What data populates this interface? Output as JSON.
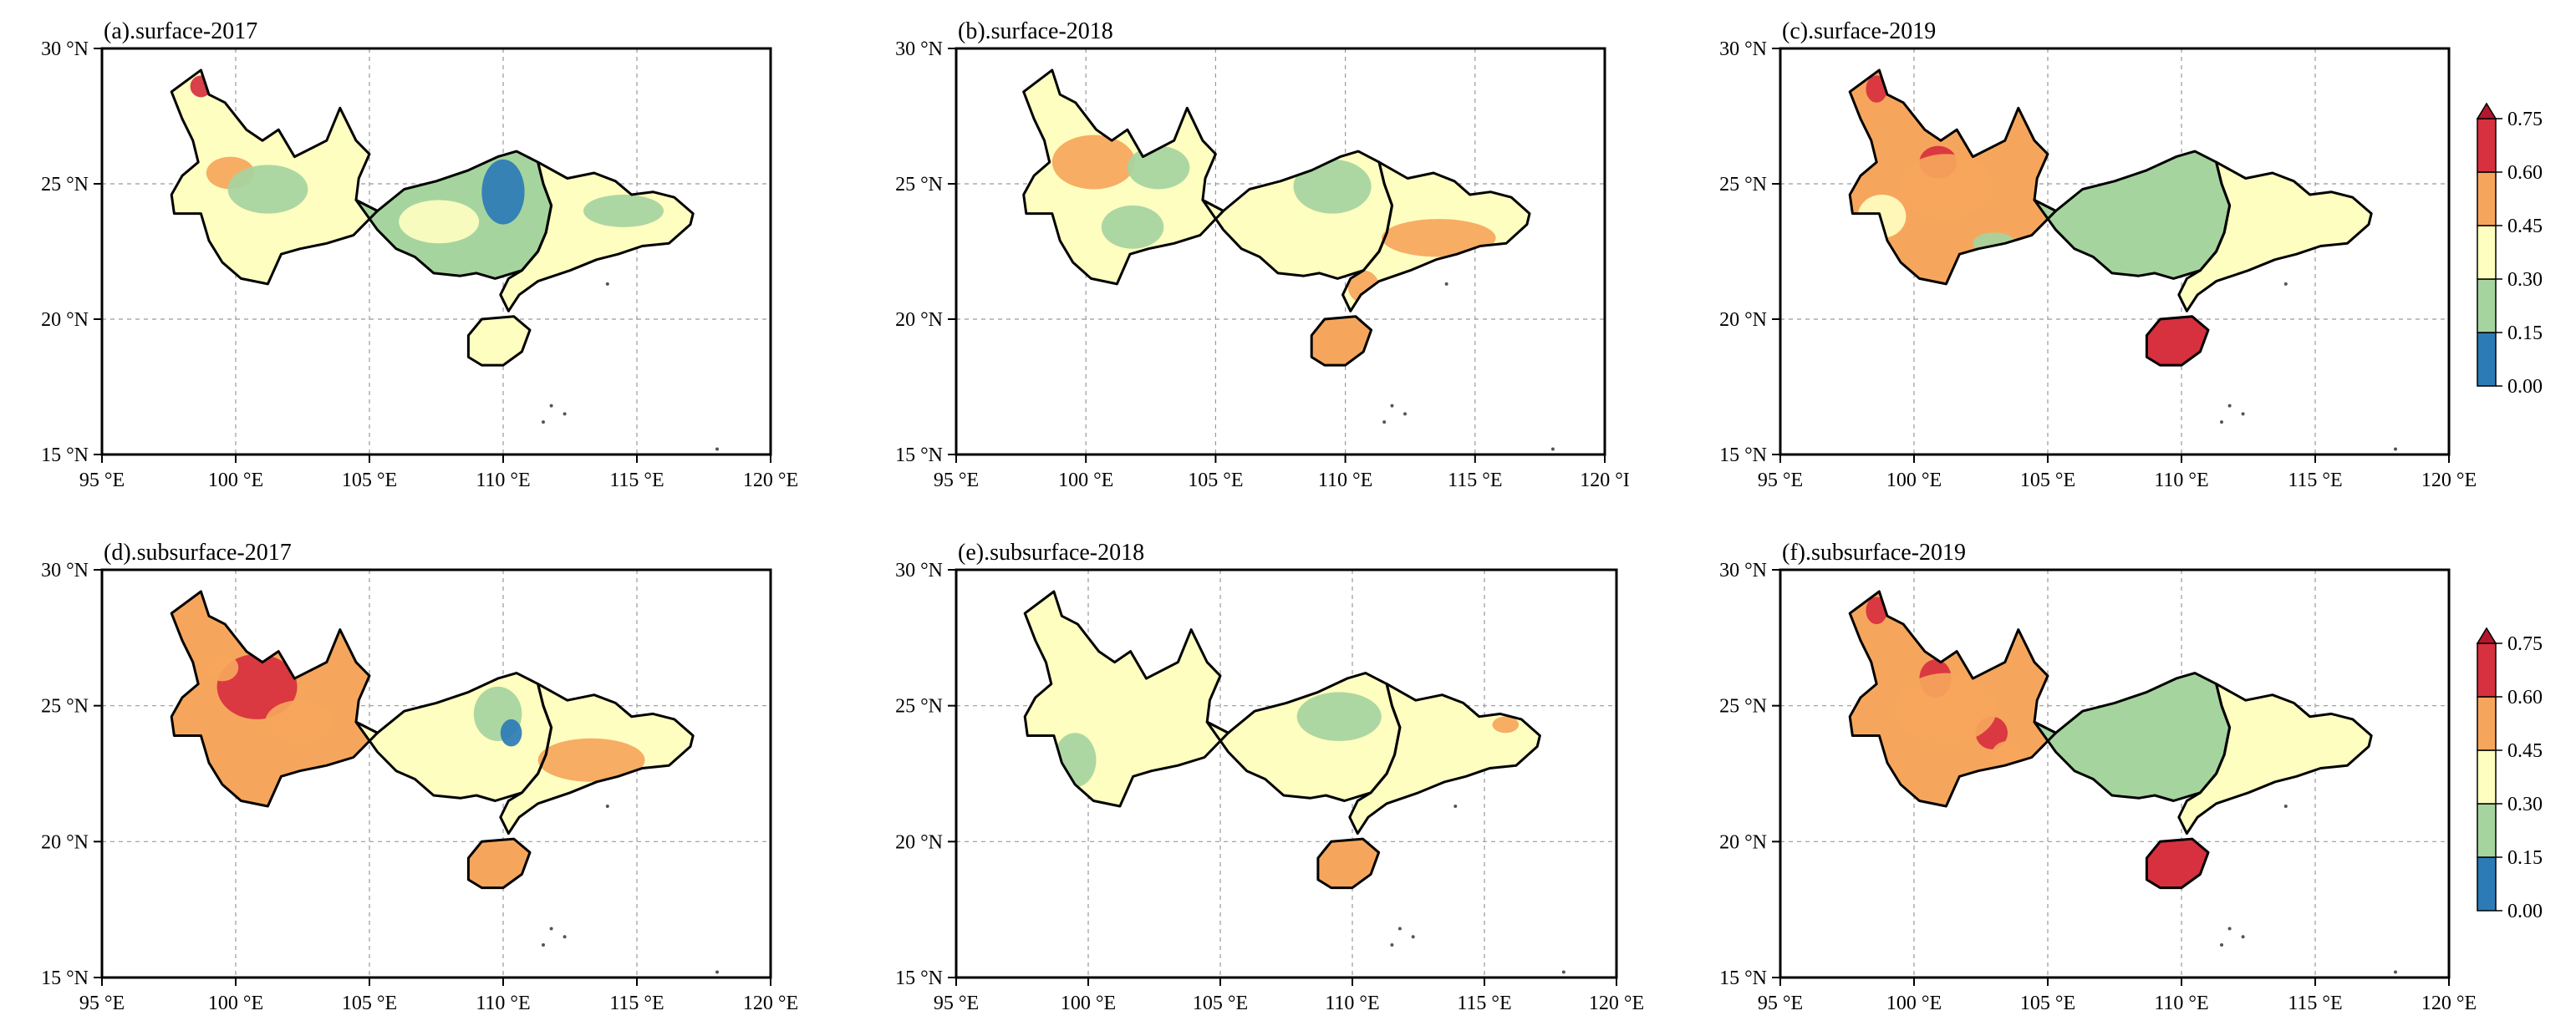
{
  "panels": [
    {
      "id": "a",
      "title": "(a).surface-2017",
      "lat_labels": [
        "30 °N",
        "25 °N",
        "20 °N",
        "15 °N"
      ],
      "lon_labels": [
        "95 °E",
        "100 °E",
        "105 °E",
        "110 °E",
        "115 °E",
        "120 °E"
      ],
      "dominant_classes": {
        "yunnan": "0.30-0.45",
        "guangxi": "0.15-0.30",
        "guangdong": "0.30-0.45",
        "hainan": "0.30-0.45"
      }
    },
    {
      "id": "b",
      "title": "(b).surface-2018",
      "lat_labels": [
        "30 °N",
        "25 °N",
        "20 °N",
        "15 °N"
      ],
      "lon_labels": [
        "95 °E",
        "100 °E",
        "105 °E",
        "110 °E",
        "115 °E",
        "120 °I"
      ],
      "dominant_classes": {
        "yunnan": "0.30-0.45",
        "guangxi": "0.30-0.45",
        "guangdong": "0.30-0.45",
        "hainan": "0.45-0.60"
      }
    },
    {
      "id": "c",
      "title": "(c).surface-2019",
      "lat_labels": [
        "30 °N",
        "25 °N",
        "20 °N",
        "15 °N"
      ],
      "lon_labels": [
        "95 °E",
        "100 °E",
        "105 °E",
        "110 °E",
        "115 °E",
        "120 °E"
      ],
      "dominant_classes": {
        "yunnan": "0.45-0.60",
        "guangxi": "0.15-0.30",
        "guangdong": "0.30-0.45",
        "hainan": "0.60-0.75"
      }
    },
    {
      "id": "d",
      "title": "(d).subsurface-2017",
      "lat_labels": [
        "30 °N",
        "25 °N",
        "20 °N",
        "15 °N"
      ],
      "lon_labels": [
        "95 °E",
        "100 °E",
        "105 °E",
        "110 °E",
        "115 °E",
        "120 °E"
      ],
      "dominant_classes": {
        "yunnan": "0.45-0.60",
        "guangxi": "0.30-0.45",
        "guangdong": "0.30-0.45",
        "hainan": "0.45-0.60"
      }
    },
    {
      "id": "e",
      "title": "(e).subsurface-2018",
      "lat_labels": [
        "30 °N",
        "25 °N",
        "20 °N",
        "15 °N"
      ],
      "lon_labels": [
        "95 °E",
        "100 °E",
        "105 °E",
        "110 °E",
        "115 °E",
        "120 °E"
      ],
      "dominant_classes": {
        "yunnan": "0.30-0.45",
        "guangxi": "0.30-0.45",
        "guangdong": "0.30-0.45",
        "hainan": "0.45-0.60"
      }
    },
    {
      "id": "f",
      "title": "(f).subsurface-2019",
      "lat_labels": [
        "30 °N",
        "25 °N",
        "20 °N",
        "15 °N"
      ],
      "lon_labels": [
        "95 °E",
        "100 °E",
        "105 °E",
        "110 °E",
        "115 °E",
        "120 °E"
      ],
      "dominant_classes": {
        "yunnan": "0.45-0.60",
        "guangxi": "0.15-0.30",
        "guangdong": "0.30-0.45",
        "hainan": "0.60-0.75"
      }
    }
  ],
  "colorbar": {
    "ticks": [
      "0.75",
      "0.60",
      "0.45",
      "0.30",
      "0.15",
      "0.00"
    ],
    "colors": {
      "0.00-0.15": "#2c7bb6",
      "0.15-0.30": "#a6d49f",
      "0.30-0.45": "#fefec0",
      "0.45-0.60": "#f6a65c",
      "0.60-0.75": "#d7303f"
    }
  }
}
